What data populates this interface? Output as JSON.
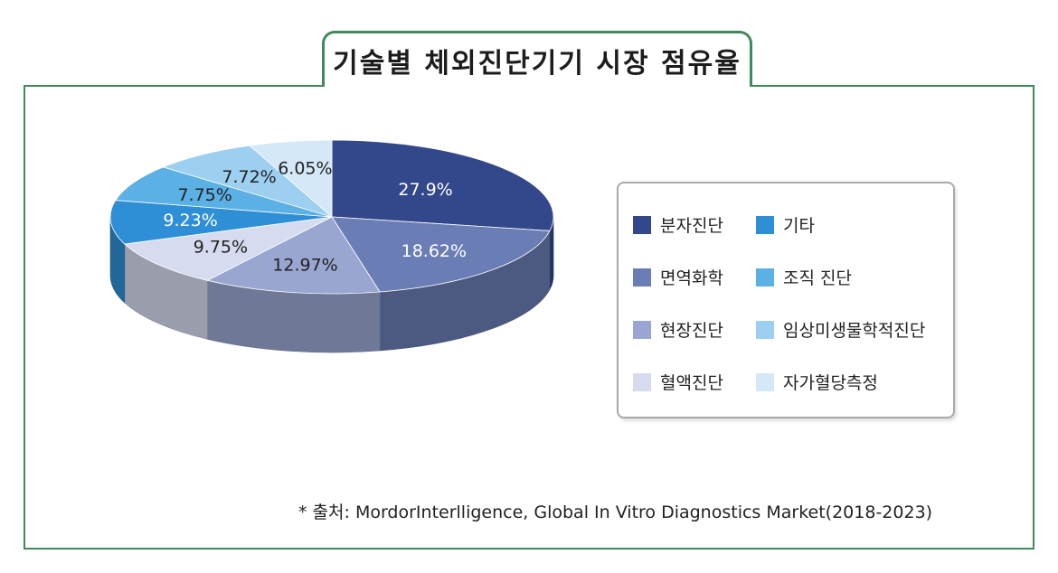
{
  "title": "기술별 체외진단기기 시장 점유율",
  "source": "* 출처: MordorInterlligence, Global In Vitro Diagnostics Market(2018-2023)",
  "chart_data": {
    "type": "pie",
    "title": "기술별 체외진단기기 시장 점유율",
    "unit": "%",
    "slices": [
      {
        "name": "분자진단",
        "value": 27.9,
        "label": "27.9%",
        "color": "#33488a"
      },
      {
        "name": "면역화학",
        "value": 18.62,
        "label": "18.62%",
        "color": "#6a7db5"
      },
      {
        "name": "현장진단",
        "value": 12.97,
        "label": "12.97%",
        "color": "#9aa6d2"
      },
      {
        "name": "혈액진단",
        "value": 9.75,
        "label": "9.75%",
        "color": "#d6dbef"
      },
      {
        "name": "기타",
        "value": 9.23,
        "label": "9.23%",
        "color": "#2f8fd6"
      },
      {
        "name": "조직 진단",
        "value": 7.75,
        "label": "7.75%",
        "color": "#5bb0e6"
      },
      {
        "name": "임상미생물학적진단",
        "value": 7.72,
        "label": "7.72%",
        "color": "#9ccff0"
      },
      {
        "name": "자가혈당측정",
        "value": 6.05,
        "label": "6.05%",
        "color": "#d5e8f8"
      }
    ],
    "legend": {
      "placement": "right",
      "columns": [
        [
          "분자진단",
          "면역화학",
          "현장진단",
          "혈액진단"
        ],
        [
          "기타",
          "조직 진단",
          "임상미생물학적진단",
          "자가혈당측정"
        ]
      ]
    }
  }
}
